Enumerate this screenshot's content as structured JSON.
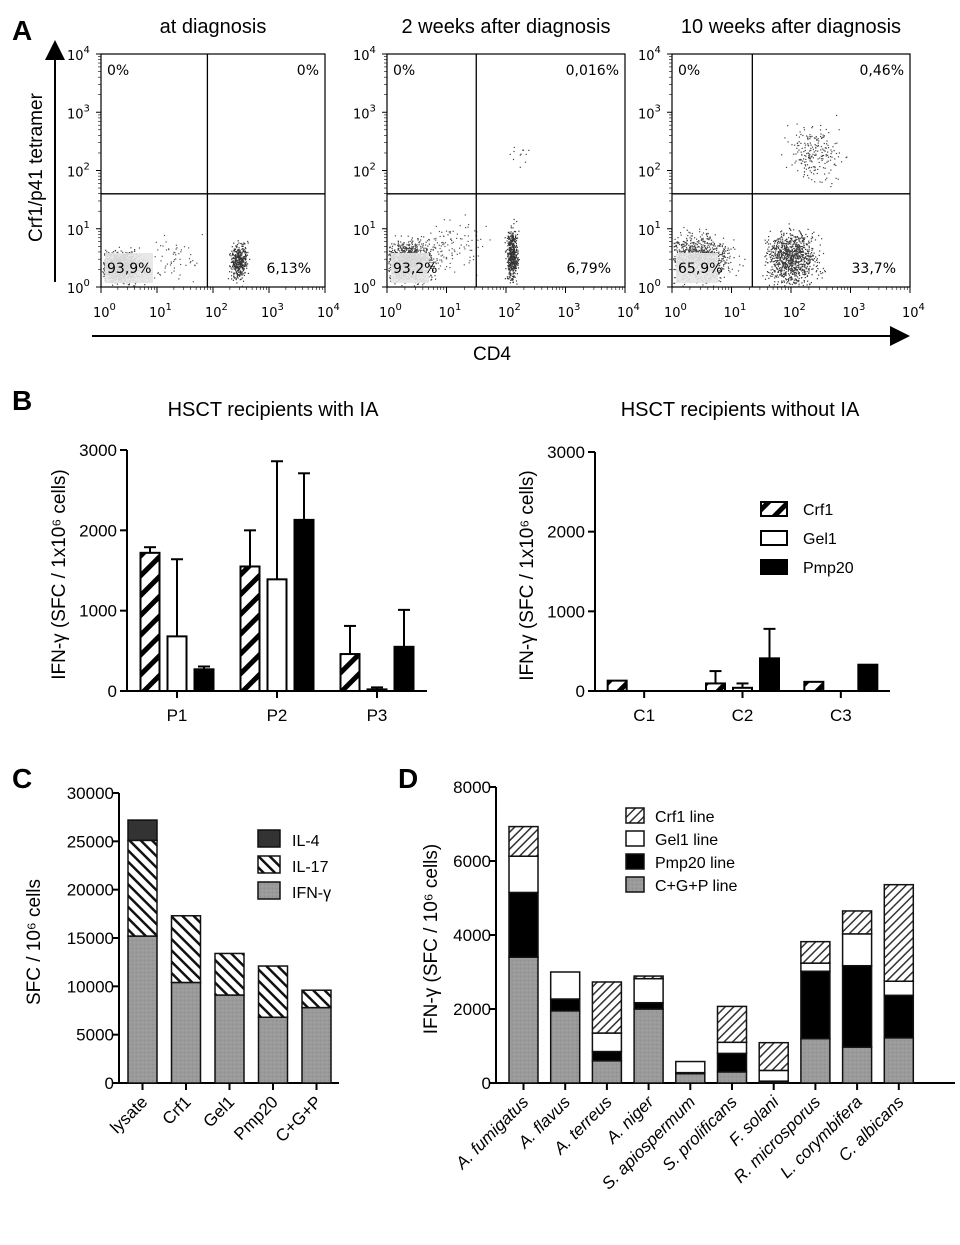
{
  "panels": {
    "A": {
      "letter": "A",
      "ylabel": "Crf1/p41 tetramer",
      "xlabel": "CD4",
      "log_ticks": [
        "10",
        "10",
        "10",
        "10",
        "10"
      ],
      "log_exps": [
        "0",
        "1",
        "2",
        "3",
        "4"
      ],
      "plots": [
        {
          "title": "at diagnosis",
          "q_ul": "0%",
          "q_ur": "0%",
          "q_ll": "93,9%",
          "q_lr": "6,13%"
        },
        {
          "title": "2 weeks after diagnosis",
          "q_ul": "0%",
          "q_ur": "0,016%",
          "q_ll": "93,2%",
          "q_lr": "6,79%"
        },
        {
          "title": "10 weeks after diagnosis",
          "q_ul": "0%",
          "q_ur": "0,46%",
          "q_ll": "65,9%",
          "q_lr": "33,7%"
        }
      ]
    },
    "B": {
      "letter": "B"
    },
    "C": {
      "letter": "C"
    },
    "D": {
      "letter": "D"
    }
  },
  "chart_data": [
    {
      "id": "A",
      "type": "scatter",
      "title": "Flow cytometry: Crf1/p41 tetramer vs CD4",
      "xlabel": "CD4",
      "ylabel": "Crf1/p41 tetramer",
      "xscale": "log",
      "yscale": "log",
      "xlim": [
        1,
        10000
      ],
      "ylim": [
        1,
        10000
      ],
      "subplots": [
        {
          "title": "at diagnosis",
          "quadrants": {
            "upper_left": "0%",
            "upper_right": "0%",
            "lower_left": "93,9%",
            "lower_right": "6,13%"
          }
        },
        {
          "title": "2 weeks after diagnosis",
          "quadrants": {
            "upper_left": "0%",
            "upper_right": "0,016%",
            "lower_left": "93,2%",
            "lower_right": "6,79%"
          }
        },
        {
          "title": "10 weeks after diagnosis",
          "quadrants": {
            "upper_left": "0%",
            "upper_right": "0,46%",
            "lower_left": "65,9%",
            "lower_right": "33,7%"
          }
        }
      ]
    },
    {
      "id": "B1",
      "type": "bar",
      "title": "HSCT recipients with IA",
      "ylabel": "IFN-γ (SFC / 1x10^6 cells)",
      "ylim": [
        0,
        3000
      ],
      "yticks": [
        0,
        1000,
        2000,
        3000
      ],
      "categories": [
        "P1",
        "P2",
        "P3"
      ],
      "series": [
        {
          "name": "Crf1",
          "pattern": "hatch-bold",
          "values": [
            1720,
            1550,
            460
          ],
          "error_upper": [
            1790,
            2000,
            810
          ]
        },
        {
          "name": "Gel1",
          "pattern": "open",
          "values": [
            680,
            1390,
            20
          ],
          "error_upper": [
            1640,
            2860,
            45
          ]
        },
        {
          "name": "Pmp20",
          "pattern": "solid",
          "values": [
            270,
            2130,
            550
          ],
          "error_upper": [
            305,
            2710,
            1010
          ]
        }
      ]
    },
    {
      "id": "B2",
      "type": "bar",
      "title": "HSCT recipients without IA",
      "ylabel": "IFN-γ (SFC / 1x10^6 cells)",
      "ylim": [
        0,
        3000
      ],
      "yticks": [
        0,
        1000,
        2000,
        3000
      ],
      "categories": [
        "C1",
        "C2",
        "C3"
      ],
      "legend": {
        "position": "top-right",
        "entries": [
          "Crf1",
          "Gel1",
          "Pmp20"
        ]
      },
      "series": [
        {
          "name": "Crf1",
          "pattern": "hatch-bold",
          "values": [
            130,
            95,
            115
          ],
          "error_upper": [
            null,
            250,
            null
          ]
        },
        {
          "name": "Gel1",
          "pattern": "open",
          "values": [
            0,
            40,
            0
          ],
          "error_upper": [
            null,
            95,
            null
          ]
        },
        {
          "name": "Pmp20",
          "pattern": "solid",
          "values": [
            0,
            410,
            330
          ],
          "error_upper": [
            null,
            780,
            null
          ]
        }
      ]
    },
    {
      "id": "C",
      "type": "bar",
      "stacked": true,
      "ylabel": "SFC / 10^6 cells",
      "ylim": [
        0,
        30000
      ],
      "yticks": [
        0,
        5000,
        10000,
        15000,
        20000,
        25000,
        30000
      ],
      "categories": [
        "lysate",
        "Crf1",
        "Gel1",
        "Pmp20",
        "C+G+P"
      ],
      "legend": {
        "position": "top-right",
        "entries": [
          "IL-4",
          "IL-17",
          "IFN-γ"
        ]
      },
      "series": [
        {
          "name": "IFN-γ",
          "pattern": "gray",
          "values": [
            15200,
            10400,
            9100,
            6800,
            7800
          ]
        },
        {
          "name": "IL-17",
          "pattern": "hatch",
          "values": [
            9900,
            6900,
            4300,
            5300,
            1800
          ]
        },
        {
          "name": "IL-4",
          "pattern": "dark",
          "values": [
            2100,
            0,
            0,
            0,
            0
          ]
        }
      ]
    },
    {
      "id": "D",
      "type": "bar",
      "stacked": true,
      "ylabel": "IFN-γ (SFC / 10^6 cells)",
      "ylim": [
        0,
        8000
      ],
      "yticks": [
        0,
        2000,
        4000,
        6000,
        8000
      ],
      "categories": [
        "A. fumigatus",
        "A. flavus",
        "A. terreus",
        "A. niger",
        "S. apiospermum",
        "S. prolificans",
        "F. solani",
        "R. microsporus",
        "L. corymbifera",
        "C. albicans"
      ],
      "legend": {
        "position": "top-center",
        "entries": [
          "Crf1 line",
          "Gel1 line",
          "Pmp20 line",
          "C+G+P line"
        ]
      },
      "series": [
        {
          "name": "C+G+P line",
          "pattern": "gray",
          "values": [
            3400,
            1950,
            600,
            2000,
            250,
            300,
            30,
            1200,
            970,
            1220
          ]
        },
        {
          "name": "Pmp20 line",
          "pattern": "solid",
          "values": [
            1750,
            320,
            250,
            170,
            30,
            500,
            20,
            1820,
            2200,
            1150
          ]
        },
        {
          "name": "Gel1 line",
          "pattern": "open",
          "values": [
            980,
            730,
            500,
            650,
            300,
            300,
            290,
            220,
            860,
            380
          ]
        },
        {
          "name": "Crf1 line",
          "pattern": "hatch-light",
          "values": [
            800,
            0,
            1380,
            70,
            0,
            970,
            750,
            580,
            620,
            2610
          ]
        }
      ]
    }
  ]
}
